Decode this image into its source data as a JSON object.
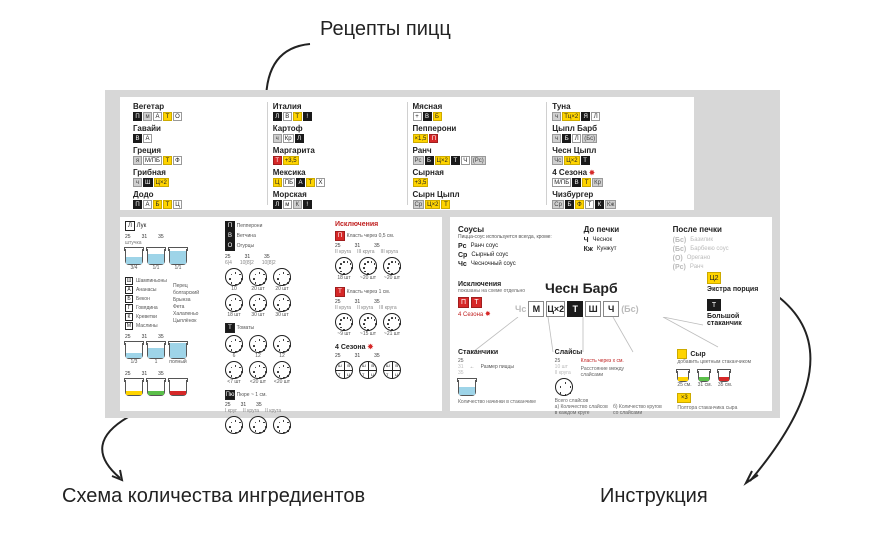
{
  "colors": {
    "page_bg": "#ffffff",
    "panel_bg": "#d7d7d7",
    "card_bg": "#ffffff",
    "text": "#222222",
    "annotation": "#222222",
    "border": "#d0d0d0",
    "red": "#d62828",
    "red_text": "#c02020",
    "yellow": "#ffd400",
    "black": "#1a1a1a",
    "grey_tag": "#cfcfcf",
    "grey_txt": "#bbbbbb",
    "green": "#5bbf4a",
    "blue_fill": "#9ed4e8"
  },
  "annotations": {
    "recipes": "Рецепты пицц",
    "ingredients": "Схема количества ингредиентов",
    "instruction": "Инструкция"
  },
  "recipes": {
    "columns": [
      [
        {
          "name": "Вегетар",
          "tags": [
            {
              "t": "П",
              "s": "black"
            },
            {
              "t": "м",
              "s": "grey"
            },
            {
              "t": "А",
              "s": "white"
            },
            {
              "t": "Т",
              "s": "yellow"
            },
            {
              "t": "О",
              "s": "white"
            }
          ]
        },
        {
          "name": "Гавайи",
          "tags": [
            {
              "t": "В",
              "s": "black"
            },
            {
              "t": "А",
              "s": "white"
            }
          ]
        },
        {
          "name": "Греция",
          "tags": [
            {
              "t": "я",
              "s": "grey"
            },
            {
              "t": "М/ПБ",
              "s": "white"
            },
            {
              "t": "Т",
              "s": "yellow"
            },
            {
              "t": "Ф",
              "s": "white"
            }
          ]
        },
        {
          "name": "Грибная",
          "tags": [
            {
              "t": "ч",
              "s": "grey"
            },
            {
              "t": "Ш",
              "s": "black"
            },
            {
              "t": "Ц×2",
              "s": "yellow"
            }
          ]
        },
        {
          "name": "Додо",
          "tags": [
            {
              "t": "П",
              "s": "black"
            },
            {
              "t": "А",
              "s": "white"
            },
            {
              "t": "Б",
              "s": "yellow"
            },
            {
              "t": "Т",
              "s": "yellow"
            },
            {
              "t": "Ц",
              "s": "white"
            }
          ]
        }
      ],
      [
        {
          "name": "Италия",
          "tags": [
            {
              "t": "Л",
              "s": "black"
            },
            {
              "t": "В",
              "s": "white"
            },
            {
              "t": "Т",
              "s": "yellow"
            },
            {
              "t": "!",
              "s": "black"
            }
          ]
        },
        {
          "name": "Картоф",
          "tags": [
            {
              "t": "ч",
              "s": "grey"
            },
            {
              "t": "Кр",
              "s": "white"
            },
            {
              "t": "Л",
              "s": "black"
            }
          ]
        },
        {
          "name": "Маргарита",
          "tags": [
            {
              "t": "Т",
              "s": "red"
            },
            {
              "t": "+3,5",
              "s": "yellow"
            }
          ]
        },
        {
          "name": "Мексика",
          "tags": [
            {
              "t": "Ц",
              "s": "yellow"
            },
            {
              "t": "ПБ",
              "s": "white"
            },
            {
              "t": "А",
              "s": "black"
            },
            {
              "t": "Т",
              "s": "yellow"
            },
            {
              "t": "Х",
              "s": "white"
            }
          ]
        },
        {
          "name": "Морская",
          "tags": [
            {
              "t": "Л",
              "s": "black"
            },
            {
              "t": "м",
              "s": "white"
            },
            {
              "t": "К",
              "s": "grey"
            },
            {
              "t": "!",
              "s": "black"
            }
          ]
        }
      ],
      [
        {
          "name": "Мясная",
          "tags": [
            {
              "t": "+",
              "s": "white"
            },
            {
              "t": "В",
              "s": "black"
            },
            {
              "t": "Б",
              "s": "yellow"
            }
          ]
        },
        {
          "name": "Пепперони",
          "tags": [
            {
              "t": "×1,5",
              "s": "yellow"
            },
            {
              "t": "П",
              "s": "red"
            }
          ]
        },
        {
          "name": "Ранч",
          "tags": [
            {
              "t": "Рс",
              "s": "grey"
            },
            {
              "t": "Б",
              "s": "black"
            },
            {
              "t": "Ц×2",
              "s": "yellow"
            },
            {
              "t": "Т",
              "s": "black"
            },
            {
              "t": "Ч",
              "s": "white"
            },
            {
              "t": "(Рс)",
              "s": "grey"
            }
          ]
        },
        {
          "name": "Сырная",
          "tags": [
            {
              "t": "+3,5",
              "s": "yellow"
            }
          ]
        },
        {
          "name": "Сырн Цыпл",
          "tags": [
            {
              "t": "Ср",
              "s": "grey"
            },
            {
              "t": "Ц×2",
              "s": "yellow"
            },
            {
              "t": "Т",
              "s": "yellow"
            }
          ]
        }
      ],
      [
        {
          "name": "Туна",
          "tags": [
            {
              "t": "ч",
              "s": "grey"
            },
            {
              "t": "Тц×2",
              "s": "yellow"
            },
            {
              "t": "Я",
              "s": "black"
            },
            {
              "t": "Л",
              "s": "white"
            }
          ]
        },
        {
          "name": "Цыпл Барб",
          "tags": [
            {
              "t": "ч",
              "s": "grey"
            },
            {
              "t": "Б",
              "s": "black"
            },
            {
              "t": "Л",
              "s": "white"
            },
            {
              "t": "(Бс)",
              "s": "grey"
            }
          ]
        },
        {
          "name": "Чесн Цыпл",
          "tags": [
            {
              "t": "Чс",
              "s": "grey"
            },
            {
              "t": "Ц×2",
              "s": "yellow"
            },
            {
              "t": "Т",
              "s": "black"
            }
          ]
        },
        {
          "name": "4 Сезона",
          "star": true,
          "tags": [
            {
              "t": "М/ПБ",
              "s": "white"
            },
            {
              "t": "В",
              "s": "black"
            },
            {
              "t": "Т",
              "s": "yellow"
            },
            {
              "t": "Кр",
              "s": "grey"
            }
          ]
        },
        {
          "name": "Чизбургер",
          "tags": [
            {
              "t": "Ср",
              "s": "grey"
            },
            {
              "t": "Б",
              "s": "black"
            },
            {
              "t": "Ф",
              "s": "yellow"
            },
            {
              "t": "Т",
              "s": "white"
            },
            {
              "t": "К",
              "s": "black"
            },
            {
              "t": "Кж",
              "s": "grey"
            }
          ]
        }
      ]
    ]
  },
  "ingredients": {
    "left_block": {
      "luk_tag": "Л",
      "luk_label": "Лук",
      "sizes_row1": [
        "25",
        "31",
        "35"
      ],
      "note1": "штучка",
      "units1": [
        "3/4",
        "1/1",
        "1/1"
      ],
      "fill_blue": "#9ed4e8",
      "list2_letters": [
        "Ш",
        "А",
        "Б",
        "Г",
        "К",
        "М"
      ],
      "list2_labels": [
        "Шампиньоны",
        "Ананасы",
        "Бекон",
        "Говядина",
        "Креветки",
        "Маслины"
      ],
      "list2b_labels": [
        "Перец болгарский",
        "Брынза",
        "Фета",
        "Халапеньо",
        "Цыплёнок"
      ],
      "sizes_row2": [
        "25",
        "31",
        "35"
      ],
      "units2": [
        "1/3",
        "1",
        "полный"
      ],
      "bottom_sizes": [
        "25",
        "31",
        "35"
      ],
      "bottom_colors": [
        "#ffd400",
        "#5bbf4a",
        "#d62828"
      ]
    },
    "mid_block": {
      "p_tag": "П",
      "p_label": "Пепперони",
      "v_tag": "В",
      "v_label": "Ветчина",
      "o_tag": "О",
      "o_label": "Огурцы",
      "head_sizes": [
        "25",
        "31",
        "35"
      ],
      "head_sub": [
        "6|4",
        "10[8]2",
        "10[8]2"
      ],
      "circle_vals": [
        [
          "10",
          "20 шт",
          "20 шт"
        ],
        [
          "18 шт",
          "30 шт",
          "30 шт"
        ],
        [
          "6",
          "12",
          "12"
        ],
        [
          "<7 шт",
          "<20 шт",
          "<20 шт"
        ]
      ],
      "t_tag": "Т",
      "t_label": "Томаты",
      "p2_tag": "Пю",
      "p2_label": "Пюре ~ 1 см.",
      "krug_labels": [
        "25",
        "31",
        "35"
      ],
      "krug_sub": [
        "I круг",
        "II круга",
        "II круга"
      ]
    },
    "right_block": {
      "heading": "Исключения",
      "rule1": "Класть через 0,5 см.",
      "sizes1": [
        "25",
        "31",
        "35"
      ],
      "sub1": [
        "II круга",
        "III круга",
        "III круга"
      ],
      "foot1": [
        "18 шт",
        "~20 шт",
        "~20 шт"
      ],
      "rule2": "Класть через 1 см.",
      "sizes2": [
        "25",
        "31",
        "35"
      ],
      "sub2": [
        "II круга",
        "II круга",
        "III круга"
      ],
      "foot2": [
        "~9 шт",
        "~15 шт",
        "~21 шт"
      ],
      "seasons": "4 Сезона",
      "sizes3": [
        "25",
        "31",
        "35"
      ]
    }
  },
  "instruction": {
    "sauces_h": "Соусы",
    "sauces_note": "Пицца-соус используется всегда, кроме:",
    "sauces": [
      {
        "k": "Рс",
        "v": "Ранч соус"
      },
      {
        "k": "Ср",
        "v": "Сырный соус"
      },
      {
        "k": "Чс",
        "v": "Чесночный соус"
      }
    ],
    "before_h": "До печки",
    "before": [
      {
        "k": "Ч",
        "v": "Чеснок"
      },
      {
        "k": "Кж",
        "v": "Кунжут"
      }
    ],
    "after_h": "После печки",
    "after": [
      {
        "k": "(Бс)",
        "v": "Базилик"
      },
      {
        "k": "(Бс)",
        "v": "Барбекю соус"
      },
      {
        "k": "(О)",
        "v": "Орегано"
      },
      {
        "k": "(Рс)",
        "v": "Ранч"
      }
    ],
    "excl_h": "Исключения",
    "excl_note": "показаны на схеме отдельно",
    "red_tags": [
      "П",
      "Т"
    ],
    "excl_line": "4 Сезона",
    "big_name": "Чесн Барб",
    "strip": [
      {
        "t": "Чс",
        "s": "grey"
      },
      {
        "t": "М",
        "s": "white"
      },
      {
        "t": "Ц×2",
        "s": "white"
      },
      {
        "t": "Т",
        "s": "black"
      },
      {
        "t": "Ш",
        "s": "white"
      },
      {
        "t": "Ч",
        "s": "white"
      },
      {
        "t": "(Бс)",
        "s": "grey"
      }
    ],
    "extra_h": "Экстра порция",
    "extra_tag": "Ц2",
    "big_cup_h": "Большой стаканчик",
    "big_cup_tag": "Т",
    "cups_h": "Стаканчики",
    "cups_sizes": [
      "25",
      "31",
      "35"
    ],
    "cups_note": "Размер пиццы",
    "cups_foot": "Количество начинки в стаканчике",
    "slices_h": "Слайсы",
    "slices_sizes": [
      "25"
    ],
    "slices_sub": [
      "10 шт",
      "II круга"
    ],
    "slices_rule": "Класть через х см.",
    "slices_spacing": "Расстояние между слайсами",
    "slices_a": "а) Количество слайсов в каждом круге",
    "slices_b": "б) Количество кругов со слайсами",
    "slices_total": "Всего слайсов",
    "cheese_h": "Сыр",
    "cheese_note": "добавить цветным стаканчиком",
    "cheese_sizes": [
      "25 см.",
      "31 см.",
      "35 см."
    ],
    "cheese_colors": [
      "#ffd400",
      "#5bbf4a",
      "#d62828"
    ],
    "cheese_tag": "×3",
    "cheese_foot": "Полтора стаканчика сыра"
  }
}
